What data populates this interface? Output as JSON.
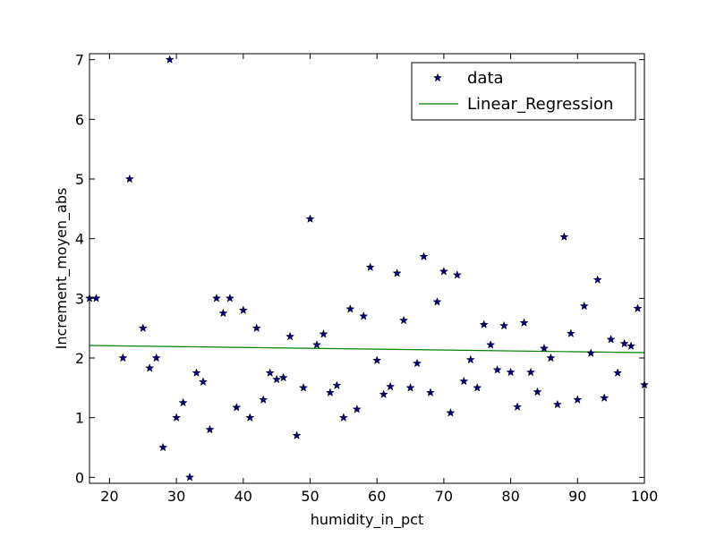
{
  "chart_data": {
    "type": "scatter",
    "xlabel": "humidity_in_pct",
    "ylabel": "Increment_moyen_abs",
    "xlim": [
      17,
      100
    ],
    "ylim": [
      -0.1,
      7.1
    ],
    "xticks": [
      20,
      30,
      40,
      50,
      60,
      70,
      80,
      90,
      100
    ],
    "yticks": [
      0,
      1,
      2,
      3,
      4,
      5,
      6,
      7
    ],
    "grid": false,
    "legend_position": "top-right",
    "series": [
      {
        "name": "data",
        "kind": "scatter",
        "marker": "star",
        "color": "#000080",
        "x": [
          17,
          18,
          22,
          23,
          25,
          26,
          27,
          28,
          29,
          30,
          31,
          32,
          33,
          34,
          35,
          36,
          37,
          38,
          39,
          40,
          41,
          42,
          43,
          44,
          45,
          46,
          47,
          48,
          49,
          50,
          51,
          52,
          53,
          54,
          55,
          56,
          57,
          58,
          59,
          60,
          61,
          62,
          63,
          64,
          65,
          66,
          67,
          68,
          69,
          70,
          71,
          72,
          73,
          74,
          75,
          76,
          77,
          78,
          79,
          80,
          81,
          82,
          83,
          84,
          85,
          86,
          87,
          88,
          89,
          90,
          91,
          92,
          93,
          94,
          95,
          96,
          97,
          98,
          99,
          100
        ],
        "y": [
          3.0,
          3.0,
          2.0,
          5.0,
          2.5,
          1.83,
          2.0,
          0.5,
          7.0,
          1.0,
          1.25,
          0.0,
          1.75,
          1.6,
          0.8,
          3.0,
          2.75,
          3.0,
          1.17,
          2.8,
          1.0,
          2.5,
          1.3,
          1.75,
          1.64,
          1.67,
          2.36,
          0.7,
          1.5,
          4.33,
          2.22,
          2.4,
          1.42,
          1.54,
          1.0,
          2.82,
          1.14,
          2.7,
          3.52,
          1.96,
          1.39,
          1.52,
          3.42,
          2.63,
          1.5,
          1.91,
          3.7,
          1.42,
          2.94,
          3.45,
          1.08,
          3.39,
          1.61,
          1.97,
          1.5,
          2.56,
          2.22,
          1.8,
          2.54,
          1.76,
          1.18,
          2.59,
          1.76,
          1.43,
          2.16,
          2.0,
          1.22,
          4.03,
          2.41,
          1.3,
          2.87,
          2.08,
          3.31,
          1.33,
          2.31,
          1.75,
          2.24,
          2.2,
          2.83,
          1.55
        ]
      },
      {
        "name": "Linear_Regression",
        "kind": "line",
        "color": "#008000",
        "x": [
          17,
          100
        ],
        "y": [
          2.21,
          2.09
        ]
      }
    ]
  }
}
